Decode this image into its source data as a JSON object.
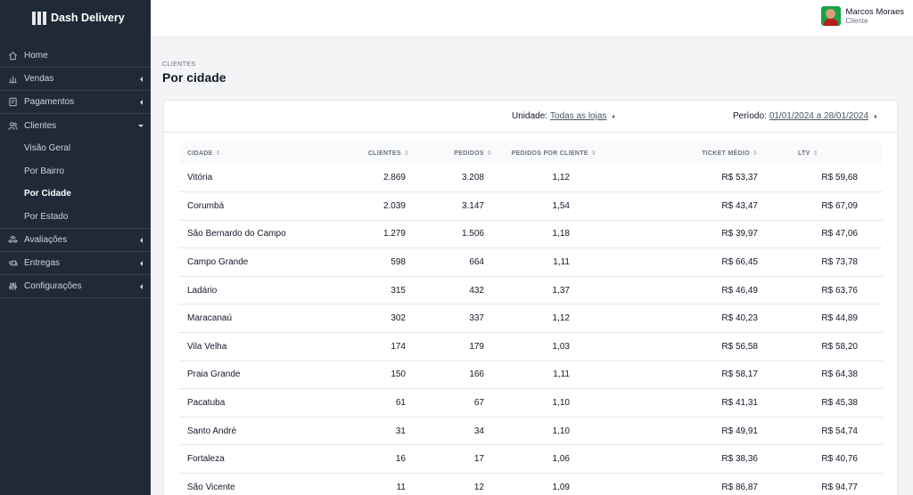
{
  "brand": {
    "name": "Dash Delivery"
  },
  "user": {
    "name": "Marcos Moraes",
    "role": "Cliente"
  },
  "sidebar": {
    "items": [
      {
        "label": "Home",
        "icon": "home-icon"
      },
      {
        "label": "Vendas",
        "icon": "chart-bar-icon"
      },
      {
        "label": "Pagamentos",
        "icon": "receipt-icon"
      },
      {
        "label": "Clientes",
        "icon": "users-icon"
      },
      {
        "label": "Avaliações",
        "icon": "cubes-icon"
      },
      {
        "label": "Entregas",
        "icon": "delivery-icon"
      },
      {
        "label": "Configurações",
        "icon": "sliders-icon"
      }
    ],
    "clientes_sub": [
      "Visão Geral",
      "Por Bairro",
      "Por Cidade",
      "Por Estado"
    ],
    "active_sub": "Por Cidade"
  },
  "header": {
    "breadcrumb": "CLIENTES",
    "title": "Por cidade"
  },
  "filters": {
    "unidade_label": "Unidade:",
    "unidade_value": "Todas as lojas",
    "periodo_label": "Período:",
    "periodo_value": "01/01/2024 a 28/01/2024"
  },
  "table": {
    "headers": [
      "CIDADE",
      "CLIENTES",
      "PEDIDOS",
      "PEDIDOS POR CLIENTE",
      "TICKET MÉDIO",
      "LTV"
    ],
    "rows": [
      [
        "Vitória",
        "2.869",
        "3.208",
        "1,12",
        "R$ 53,37",
        "R$ 59,68"
      ],
      [
        "Corumbá",
        "2.039",
        "3.147",
        "1,54",
        "R$ 43,47",
        "R$ 67,09"
      ],
      [
        "São Bernardo do Campo",
        "1.279",
        "1.506",
        "1,18",
        "R$ 39,97",
        "R$ 47,06"
      ],
      [
        "Campo Grande",
        "598",
        "664",
        "1,11",
        "R$ 66,45",
        "R$ 73,78"
      ],
      [
        "Ladário",
        "315",
        "432",
        "1,37",
        "R$ 46,49",
        "R$ 63,76"
      ],
      [
        "Maracanaú",
        "302",
        "337",
        "1,12",
        "R$ 40,23",
        "R$ 44,89"
      ],
      [
        "Vila Velha",
        "174",
        "179",
        "1,03",
        "R$ 56,58",
        "R$ 58,20"
      ],
      [
        "Praia Grande",
        "150",
        "166",
        "1,11",
        "R$ 58,17",
        "R$ 64,38"
      ],
      [
        "Pacatuba",
        "61",
        "67",
        "1,10",
        "R$ 41,31",
        "R$ 45,38"
      ],
      [
        "Santo André",
        "31",
        "34",
        "1,10",
        "R$ 49,91",
        "R$ 54,74"
      ],
      [
        "Fortaleza",
        "16",
        "17",
        "1,06",
        "R$ 38,36",
        "R$ 40,76"
      ],
      [
        "São Vicente",
        "11",
        "12",
        "1,09",
        "R$ 86,87",
        "R$ 94,77"
      ]
    ]
  }
}
